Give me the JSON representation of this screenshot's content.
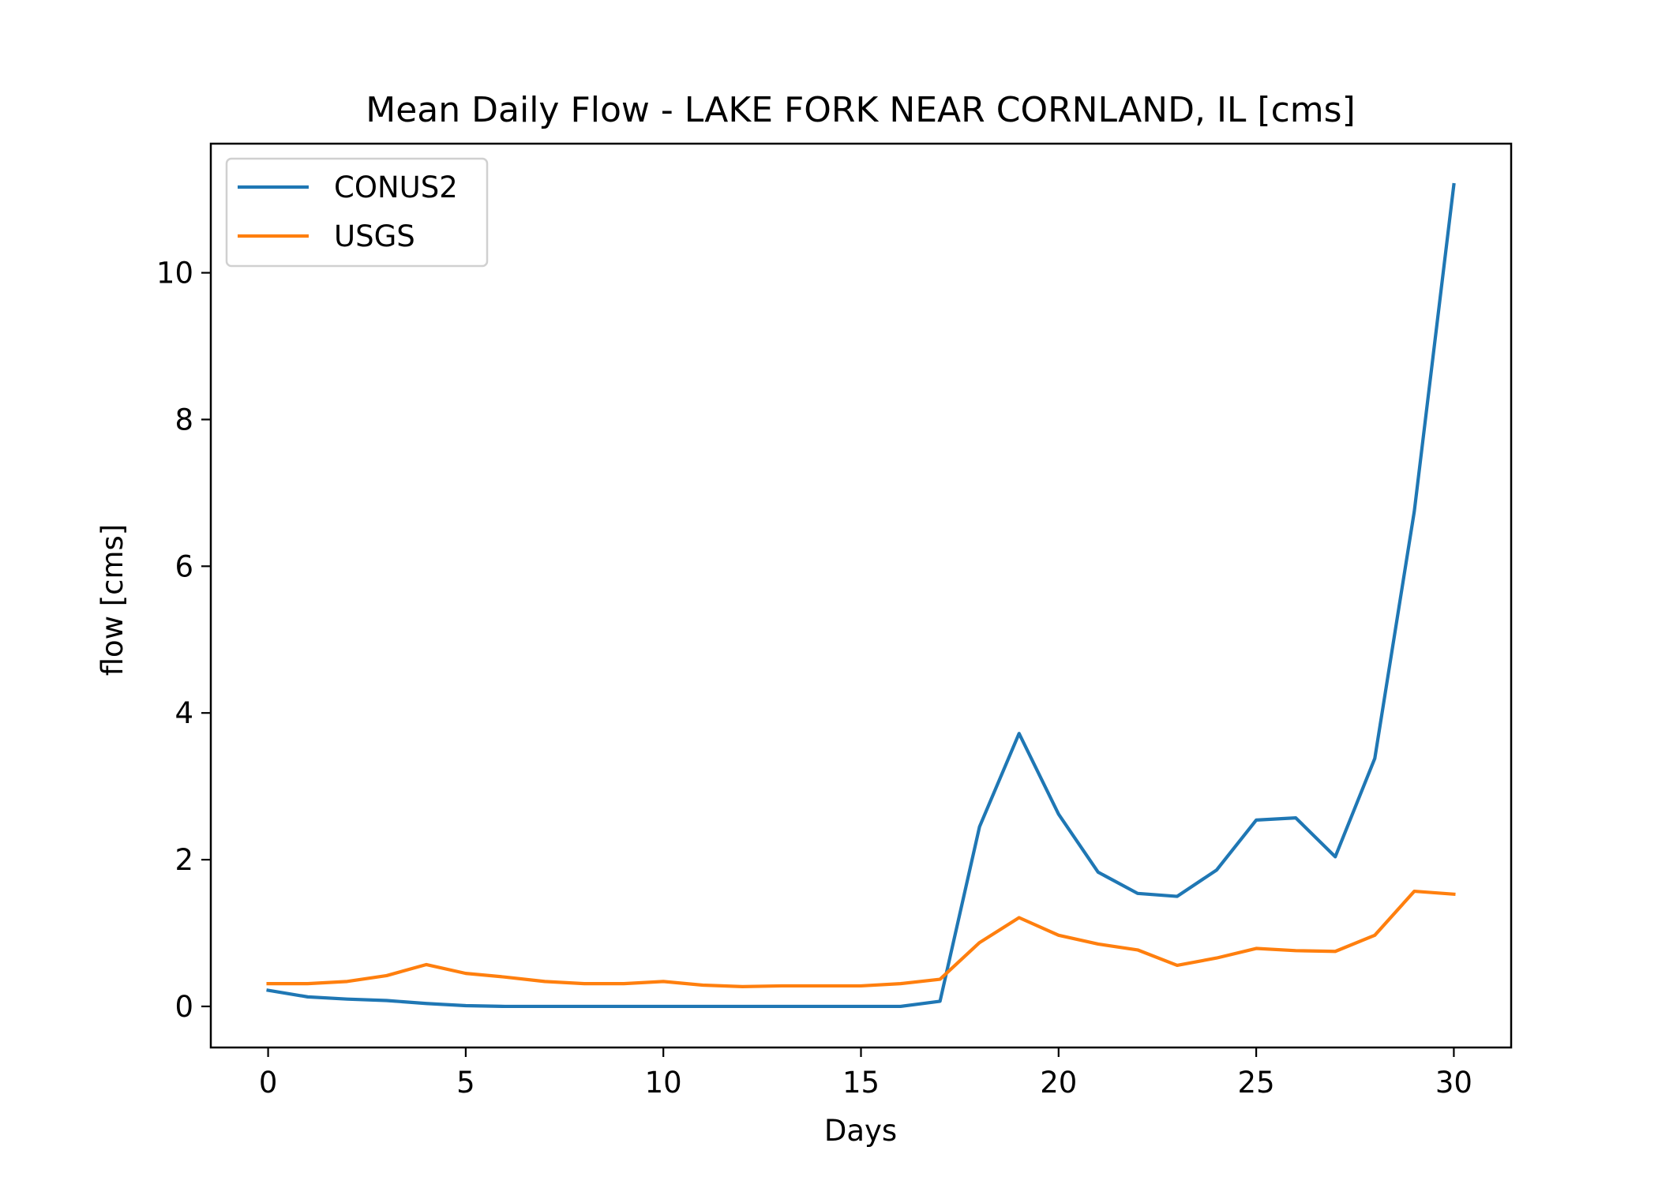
{
  "chart_data": {
    "type": "line",
    "title": "Mean Daily Flow - LAKE FORK NEAR CORNLAND, IL [cms]",
    "xlabel": "Days",
    "ylabel": "flow [cms]",
    "xlim": [
      -1.45,
      31.45
    ],
    "ylim": [
      -0.56,
      11.76
    ],
    "xticks": [
      0,
      5,
      10,
      15,
      20,
      25,
      30
    ],
    "yticks": [
      0,
      2,
      4,
      6,
      8,
      10
    ],
    "xtick_labels": [
      "0",
      "5",
      "10",
      "15",
      "20",
      "25",
      "30"
    ],
    "ytick_labels": [
      "0",
      "2",
      "4",
      "6",
      "8",
      "10"
    ],
    "grid": false,
    "legend_position": "upper-left",
    "x": [
      0,
      1,
      2,
      3,
      4,
      5,
      6,
      7,
      8,
      9,
      10,
      11,
      12,
      13,
      14,
      15,
      16,
      17,
      18,
      19,
      20,
      21,
      22,
      23,
      24,
      25,
      26,
      27,
      28,
      29,
      30
    ],
    "series": [
      {
        "name": "CONUS2",
        "color": "#1f77b4",
        "values": [
          0.22,
          0.13,
          0.1,
          0.08,
          0.04,
          0.01,
          0.0,
          0.0,
          0.0,
          0.0,
          0.0,
          0.0,
          0.0,
          0.0,
          0.0,
          0.0,
          0.0,
          0.07,
          2.45,
          3.72,
          2.62,
          1.83,
          1.54,
          1.5,
          1.86,
          2.54,
          2.57,
          2.04,
          3.38,
          6.75,
          11.2
        ]
      },
      {
        "name": "USGS",
        "color": "#ff7f0e",
        "values": [
          0.31,
          0.31,
          0.34,
          0.42,
          0.57,
          0.45,
          0.4,
          0.34,
          0.31,
          0.31,
          0.34,
          0.29,
          0.27,
          0.28,
          0.28,
          0.28,
          0.31,
          0.37,
          0.87,
          1.21,
          0.97,
          0.85,
          0.77,
          0.56,
          0.66,
          0.79,
          0.76,
          0.75,
          0.97,
          1.57,
          1.53
        ]
      }
    ]
  }
}
